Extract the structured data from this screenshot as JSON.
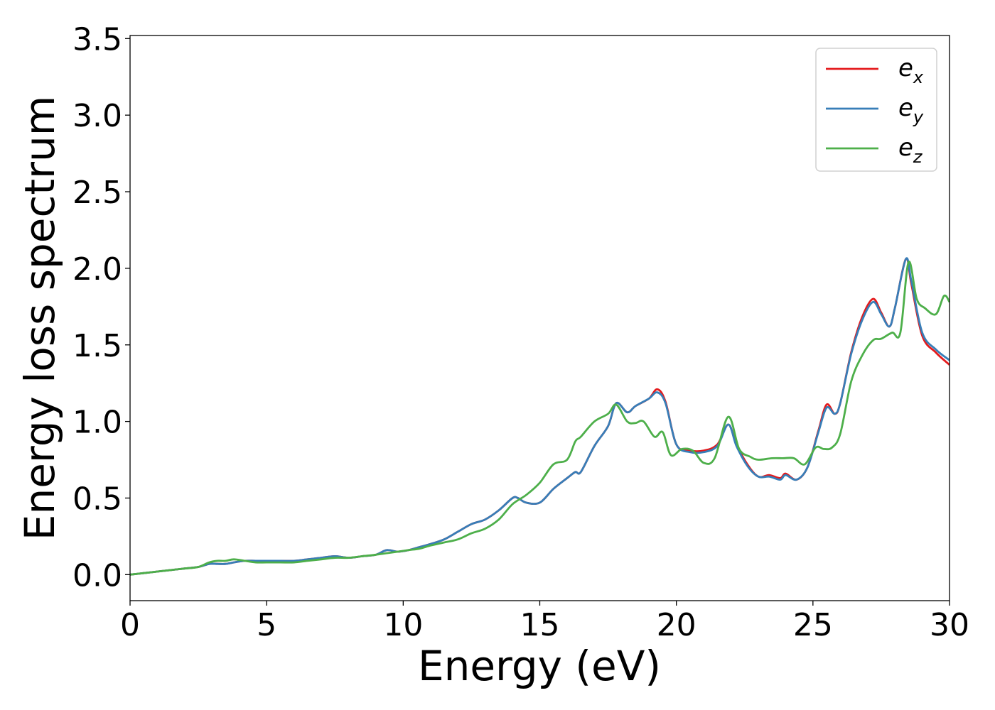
{
  "chart_data": {
    "type": "line",
    "xlabel": "Energy (eV)",
    "ylabel": "Energy loss spectrum",
    "xlim": [
      0,
      30
    ],
    "ylim": [
      -0.17,
      3.52
    ],
    "xticks": [
      "0",
      "5",
      "10",
      "15",
      "20",
      "25",
      "30"
    ],
    "yticks": [
      "0.0",
      "0.5",
      "1.0",
      "1.5",
      "2.0",
      "2.5",
      "3.0",
      "3.5"
    ],
    "grid": false,
    "legend_position": "top-right",
    "series": [
      {
        "name": "e_x",
        "legend_base": "e",
        "legend_sub": "x",
        "color": "#e41a1c",
        "x": [
          0,
          0.5,
          1,
          1.5,
          2,
          2.5,
          2.9,
          3.2,
          3.5,
          3.8,
          4.2,
          4.6,
          5,
          5.5,
          6,
          6.5,
          7,
          7.5,
          8,
          8.5,
          9,
          9.4,
          9.8,
          10.2,
          10.6,
          11,
          11.5,
          12,
          12.5,
          13,
          13.5,
          14,
          14.2,
          14.5,
          15,
          15.5,
          16,
          16.3,
          16.5,
          17,
          17.5,
          17.8,
          18.2,
          18.5,
          19,
          19.3,
          19.6,
          20,
          20.5,
          21,
          21.5,
          21.9,
          22.2,
          22.6,
          23,
          23.4,
          23.8,
          24,
          24.4,
          24.8,
          25.2,
          25.5,
          25.8,
          26,
          26.4,
          26.8,
          27.2,
          27.5,
          27.8,
          28,
          28.4,
          28.6,
          29,
          29.5,
          30
        ],
        "y": [
          0,
          0.01,
          0.02,
          0.03,
          0.04,
          0.05,
          0.07,
          0.07,
          0.07,
          0.08,
          0.09,
          0.09,
          0.09,
          0.09,
          0.09,
          0.1,
          0.11,
          0.12,
          0.11,
          0.12,
          0.13,
          0.16,
          0.15,
          0.16,
          0.18,
          0.2,
          0.23,
          0.28,
          0.33,
          0.36,
          0.42,
          0.5,
          0.5,
          0.47,
          0.47,
          0.56,
          0.63,
          0.67,
          0.67,
          0.84,
          0.97,
          1.12,
          1.06,
          1.1,
          1.15,
          1.21,
          1.13,
          0.85,
          0.81,
          0.81,
          0.85,
          0.98,
          0.85,
          0.72,
          0.64,
          0.65,
          0.63,
          0.66,
          0.62,
          0.7,
          0.94,
          1.11,
          1.05,
          1.12,
          1.45,
          1.68,
          1.8,
          1.71,
          1.62,
          1.74,
          2.06,
          1.9,
          1.56,
          1.45,
          1.37
        ]
      },
      {
        "name": "e_y",
        "legend_base": "e",
        "legend_sub": "y",
        "color": "#377eb8",
        "x": [
          0,
          0.5,
          1,
          1.5,
          2,
          2.5,
          2.9,
          3.2,
          3.5,
          3.8,
          4.2,
          4.6,
          5,
          5.5,
          6,
          6.5,
          7,
          7.5,
          8,
          8.5,
          9,
          9.4,
          9.8,
          10.2,
          10.6,
          11,
          11.5,
          12,
          12.5,
          13,
          13.5,
          14,
          14.2,
          14.5,
          15,
          15.5,
          16,
          16.3,
          16.5,
          17,
          17.5,
          17.8,
          18.2,
          18.5,
          19,
          19.3,
          19.6,
          20,
          20.5,
          21,
          21.5,
          21.9,
          22.2,
          22.6,
          23,
          23.4,
          23.8,
          24,
          24.4,
          24.8,
          25.2,
          25.5,
          25.8,
          26,
          26.4,
          26.8,
          27.2,
          27.5,
          27.8,
          28,
          28.4,
          28.6,
          29,
          29.5,
          30
        ],
        "y": [
          0,
          0.01,
          0.02,
          0.03,
          0.04,
          0.05,
          0.07,
          0.07,
          0.07,
          0.08,
          0.09,
          0.09,
          0.09,
          0.09,
          0.09,
          0.1,
          0.11,
          0.12,
          0.11,
          0.12,
          0.13,
          0.16,
          0.15,
          0.16,
          0.18,
          0.2,
          0.23,
          0.28,
          0.33,
          0.36,
          0.42,
          0.5,
          0.5,
          0.47,
          0.47,
          0.56,
          0.63,
          0.67,
          0.67,
          0.84,
          0.97,
          1.12,
          1.06,
          1.1,
          1.15,
          1.19,
          1.12,
          0.85,
          0.8,
          0.8,
          0.84,
          0.98,
          0.84,
          0.71,
          0.64,
          0.64,
          0.62,
          0.65,
          0.62,
          0.7,
          0.93,
          1.09,
          1.05,
          1.12,
          1.44,
          1.66,
          1.78,
          1.7,
          1.62,
          1.74,
          2.06,
          1.92,
          1.58,
          1.47,
          1.4
        ]
      },
      {
        "name": "e_z",
        "legend_base": "e",
        "legend_sub": "z",
        "color": "#4daf4a",
        "x": [
          0,
          0.5,
          1,
          1.5,
          2,
          2.5,
          2.9,
          3.2,
          3.5,
          3.8,
          4.2,
          4.6,
          5,
          5.5,
          6,
          6.5,
          7,
          7.5,
          8,
          8.5,
          9,
          9.4,
          9.8,
          10.2,
          10.6,
          11,
          11.5,
          12,
          12.5,
          13,
          13.5,
          14,
          14.5,
          15,
          15.5,
          16,
          16.3,
          16.5,
          17,
          17.5,
          17.8,
          18.2,
          18.5,
          18.8,
          19.2,
          19.5,
          19.8,
          20.2,
          20.6,
          21,
          21.4,
          21.9,
          22.3,
          22.7,
          23,
          23.5,
          23.9,
          24.3,
          24.7,
          25.1,
          25.4,
          25.7,
          26,
          26.4,
          26.8,
          27.2,
          27.5,
          27.9,
          28.2,
          28.5,
          28.8,
          29.1,
          29.5,
          29.8,
          30
        ],
        "y": [
          0,
          0.01,
          0.02,
          0.03,
          0.04,
          0.05,
          0.08,
          0.09,
          0.09,
          0.1,
          0.09,
          0.08,
          0.08,
          0.08,
          0.08,
          0.09,
          0.1,
          0.11,
          0.11,
          0.12,
          0.13,
          0.14,
          0.15,
          0.16,
          0.17,
          0.19,
          0.21,
          0.23,
          0.27,
          0.3,
          0.36,
          0.46,
          0.52,
          0.6,
          0.72,
          0.75,
          0.87,
          0.9,
          1.0,
          1.05,
          1.11,
          1.0,
          0.99,
          1.0,
          0.9,
          0.93,
          0.78,
          0.82,
          0.81,
          0.73,
          0.76,
          1.03,
          0.82,
          0.77,
          0.75,
          0.76,
          0.76,
          0.76,
          0.72,
          0.83,
          0.82,
          0.83,
          0.92,
          1.26,
          1.43,
          1.53,
          1.54,
          1.58,
          1.58,
          2.04,
          1.8,
          1.74,
          1.7,
          1.82,
          1.78
        ]
      }
    ]
  }
}
